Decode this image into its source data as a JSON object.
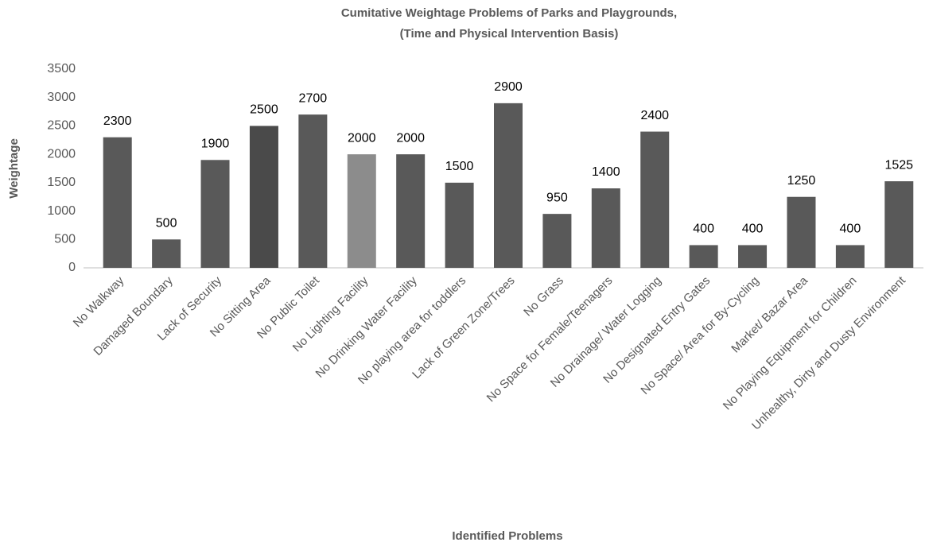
{
  "chart_data": {
    "type": "bar",
    "title": [
      "Cumitative Weightage Problems of Parks and Playgrounds,",
      "(Time and Physical Intervention Basis)"
    ],
    "x_label": "Identified Problems",
    "y_label": "Weightage",
    "categories": [
      "No Walkway",
      "Damaged Boundary",
      "Lack of Security",
      "No Sitting Area",
      "No Public Toilet",
      "No Lighting Facility",
      "No Drinking Water Facility",
      "No playing area for toddlers",
      "Lack of Green Zone/Trees",
      "No Grass",
      "No Space for Female/Teenagers",
      "No Drainage/ Water Logging",
      "No Designated Entry Gates",
      "No Space/ Area for  By-Cycling",
      "Market/ Bazar Area",
      "No Playing Equipment for Children",
      "Unhealthy, Dirty and Dusty Environment"
    ],
    "values": [
      2300,
      500,
      1900,
      2500,
      2700,
      2000,
      2000,
      1500,
      2900,
      950,
      1400,
      2400,
      400,
      400,
      1250,
      400,
      1525
    ],
    "colors": [
      "#595959",
      "#595959",
      "#595959",
      "#4a4a4a",
      "#595959",
      "#8c8c8c",
      "#595959",
      "#595959",
      "#595959",
      "#595959",
      "#595959",
      "#595959",
      "#595959",
      "#595959",
      "#595959",
      "#595959",
      "#595959"
    ],
    "ylim": [
      0,
      3500
    ],
    "yticks": [
      0,
      500,
      1000,
      1500,
      2000,
      2500,
      3000,
      3500
    ],
    "grid": false
  }
}
